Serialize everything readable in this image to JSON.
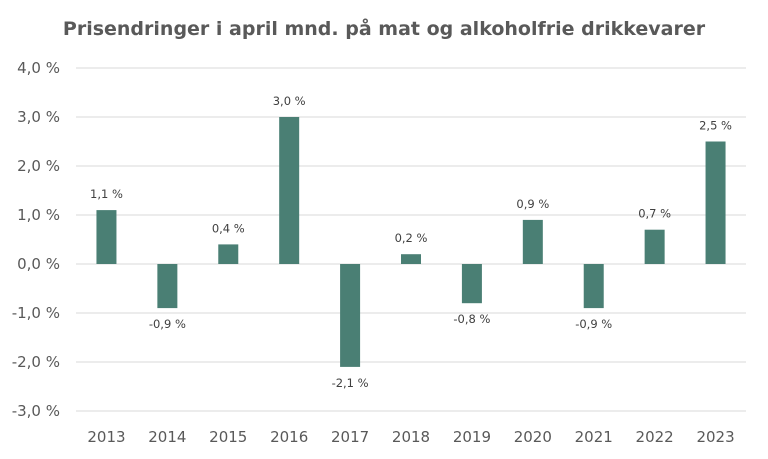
{
  "chart_data": {
    "type": "bar",
    "title": "Prisendringer i april mnd. på mat og alkoholfrie drikkevarer",
    "categories": [
      "2013",
      "2014",
      "2015",
      "2016",
      "2017",
      "2018",
      "2019",
      "2020",
      "2021",
      "2022",
      "2023"
    ],
    "values": [
      1.1,
      -0.9,
      0.4,
      3.0,
      -2.1,
      0.2,
      -0.8,
      0.9,
      -0.9,
      0.7,
      2.5
    ],
    "data_labels": [
      "1,1 %",
      "-0,9 %",
      "0,4 %",
      "3,0 %",
      "-2,1 %",
      "0,2 %",
      "-0,8 %",
      "0,9 %",
      "-0,9 %",
      "0,7 %",
      "2,5 %"
    ],
    "y_ticks": [
      4.0,
      3.0,
      2.0,
      1.0,
      0.0,
      -1.0,
      -2.0,
      -3.0
    ],
    "y_tick_labels": [
      "4,0 %",
      "3,0 %",
      "2,0 %",
      "1,0 %",
      "0,0 %",
      "-1,0 %",
      "-2,0 %",
      "-3,0 %"
    ],
    "ylim": [
      -3.0,
      4.0
    ],
    "grid": true,
    "legend": "none",
    "bar_color": "#4a7f74",
    "xlabel": "",
    "ylabel": ""
  }
}
